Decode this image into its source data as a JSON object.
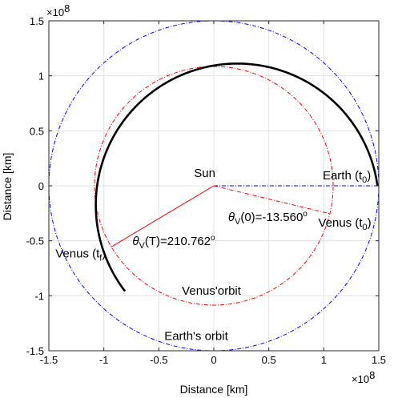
{
  "chart_data": {
    "type": "line",
    "xlabel": "Distance [km]",
    "ylabel": "Distance [km]",
    "xlim": [
      -1.5,
      1.5
    ],
    "ylim": [
      -1.5,
      1.5
    ],
    "scale_note_x": "×10",
    "scale_note_y": "×10",
    "scale_exp": "8",
    "grid": true,
    "xticks": [
      -1.5,
      -1,
      -0.5,
      0,
      0.5,
      1,
      1.5
    ],
    "yticks": [
      -1.5,
      -1,
      -0.5,
      0,
      0.5,
      1,
      1.5
    ],
    "xtick_labels": [
      "-1.5",
      "-1",
      "-0.5",
      "0",
      "0.5",
      "1",
      "1.5"
    ],
    "ytick_labels": [
      "-1.5",
      "-1",
      "-0.5",
      "0",
      "0.5",
      "1",
      "1.5"
    ],
    "series": [
      {
        "key": "earth_orbit",
        "style": "dash-dot",
        "color": "#0000ff",
        "radius": 1.5,
        "center": [
          0,
          0
        ]
      },
      {
        "key": "venus_orbit",
        "style": "dash-dot",
        "color": "#ff0000",
        "radius": 1.085,
        "center": [
          0,
          0
        ]
      },
      {
        "key": "transfer",
        "style": "solid",
        "color": "#000000",
        "radius": 1.2866,
        "center": [
          0.2134,
          -0.1754
        ],
        "theta_start_deg": 7.835,
        "theta_end_deg": 217.5
      },
      {
        "key": "sun_to_earth",
        "style": "dash-dot",
        "color": "#0000ff",
        "points": [
          [
            0,
            0
          ],
          [
            1.5,
            0
          ]
        ]
      },
      {
        "key": "sun_to_venus_t0",
        "style": "dash-dot",
        "color": "#ff0000",
        "points": [
          [
            0,
            0
          ],
          [
            1.055,
            -0.254
          ]
        ]
      },
      {
        "key": "sun_to_venus_tf",
        "style": "solid",
        "color": "#ff0000",
        "points": [
          [
            0,
            0
          ],
          [
            -0.933,
            -0.556
          ]
        ]
      }
    ],
    "annotations": [
      {
        "key": "sun",
        "text": "Sun",
        "x": -0.18,
        "y": 0.08
      },
      {
        "key": "earth_t0",
        "main": "Earth (t",
        "sub": "0",
        "close": ")",
        "x": 0.99,
        "y": 0.06
      },
      {
        "key": "venus_t0",
        "main": "Venus (t",
        "sub": "0",
        "close": ")",
        "x": 0.95,
        "y": -0.37
      },
      {
        "key": "venus_tf",
        "main": "Venus (t",
        "sub": "f",
        "close": ")",
        "x": -1.44,
        "y": -0.65
      },
      {
        "key": "theta_v0",
        "theta": "θ",
        "sub": "V",
        "rest": "(0)=-13.560",
        "deg": "o",
        "x": 0.13,
        "y": -0.32
      },
      {
        "key": "theta_vt",
        "theta": "θ",
        "sub": "V",
        "rest": "(T)=210.762",
        "deg": "o",
        "x": -0.74,
        "y": -0.54
      },
      {
        "key": "venus_orbit_label",
        "text": "Venus'orbit",
        "x": -0.29,
        "y": -0.99
      },
      {
        "key": "earth_orbit_label",
        "text": "Earth's orbit",
        "x": -0.45,
        "y": -1.4
      }
    ]
  }
}
